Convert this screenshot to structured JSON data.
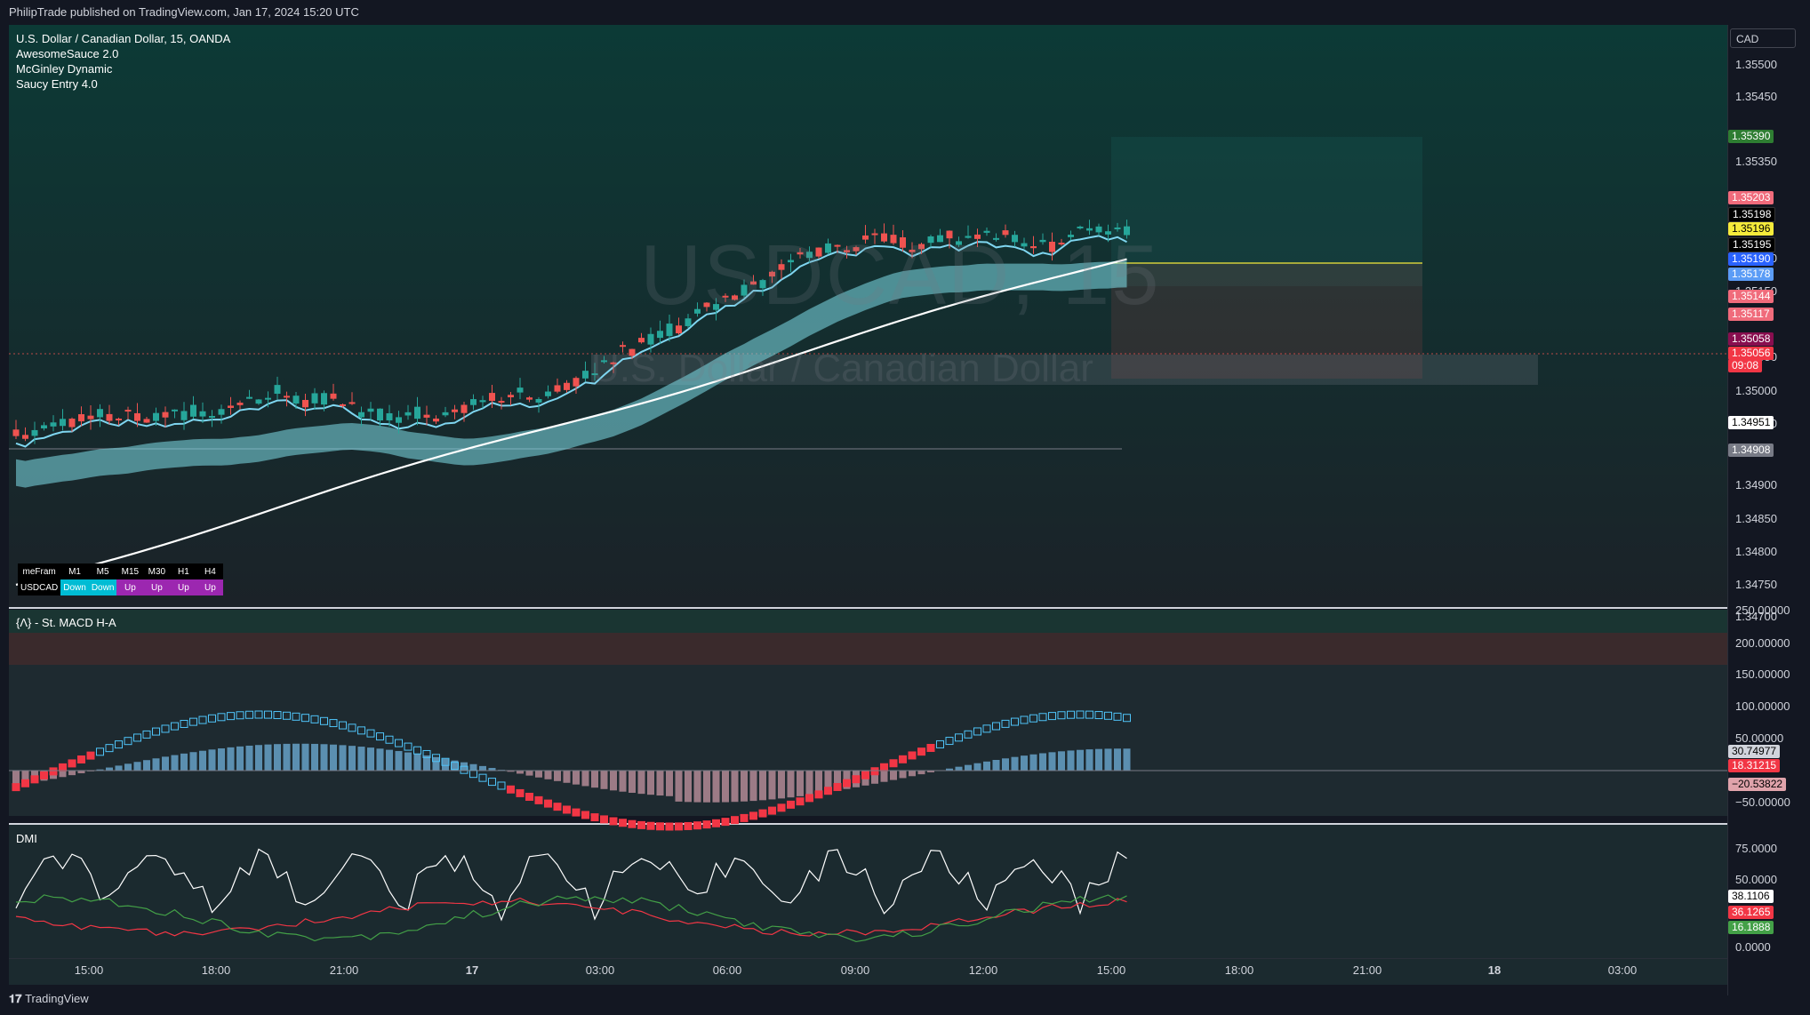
{
  "publish_line": "PhilipTrade published on TradingView.com, Jan 17, 2024 15:20 UTC",
  "main_pane": {
    "legend": [
      "U.S. Dollar / Canadian Dollar, 15, OANDA",
      "AwesomeSauce 2.0",
      "McGinley Dynamic",
      "Saucy Entry 4.0"
    ],
    "watermark_symbol": "USDCAD, 15",
    "watermark_name": "U.S. Dollar / Canadian Dollar",
    "currency_label": "CAD",
    "price_ticks": [
      "1.35500",
      "1.35450",
      "1.35400",
      "1.35350",
      "1.35300",
      "1.35250",
      "1.35200",
      "1.35150",
      "1.35100",
      "1.35050",
      "1.35000",
      "1.34950",
      "1.34900",
      "1.34850",
      "1.34800",
      "1.34750",
      "1.34700"
    ],
    "price_tags": [
      {
        "text": "1.35390",
        "color": "#2e7d32"
      },
      {
        "text": "1.35203",
        "color": "#f06b7b"
      },
      {
        "text": "1.35198",
        "color": "#000000"
      },
      {
        "text": "1.35196",
        "color": "#f5eb3b"
      },
      {
        "text": "1.35195",
        "color": "#000000"
      },
      {
        "text": "1.35190",
        "color": "#2962ff"
      },
      {
        "text": "1.35178",
        "color": "#5b9cf6"
      },
      {
        "text": "1.35144",
        "color": "#f06b7b"
      },
      {
        "text": "1.35117",
        "color": "#f06b7b"
      },
      {
        "text": "1.35058",
        "color": "#880e4f"
      },
      {
        "text": "1.35056",
        "color": "#f23645"
      },
      {
        "text": "09:08",
        "color": "#f23645"
      },
      {
        "text": "1.34951",
        "color": "#ffffff"
      },
      {
        "text": "1.34908",
        "color": "#787b86"
      }
    ],
    "timeframe_table": {
      "header": [
        "meFram",
        "M1",
        "M5",
        "M15",
        "M30",
        "H1",
        "H4"
      ],
      "row": [
        "USDCAD",
        "Down",
        "Down",
        "Up",
        "Up",
        "Up",
        "Up"
      ],
      "row_colors": [
        "#000000",
        "#00bcd4",
        "#00bcd4",
        "#9c27b0",
        "#9c27b0",
        "#9c27b0",
        "#9c27b0"
      ]
    }
  },
  "macd_pane": {
    "title": "{Λ} - St. MACD H-A",
    "ticks": [
      "250.00000",
      "200.00000",
      "150.00000",
      "100.00000",
      "50.00000",
      "0.00000",
      "−50.00000"
    ],
    "tags": [
      {
        "text": "30.74977",
        "color": "#d1d4dc"
      },
      {
        "text": "18.31215",
        "color": "#f23645"
      },
      {
        "text": "−20.53822",
        "color": "#e0a3ab"
      }
    ]
  },
  "dmi_pane": {
    "title": "DMI",
    "ticks": [
      "75.0000",
      "50.0000",
      "0.0000"
    ],
    "tags": [
      {
        "text": "38.1106",
        "color": "#ffffff"
      },
      {
        "text": "36.1265",
        "color": "#f23645"
      },
      {
        "text": "16.1888",
        "color": "#43a047"
      }
    ]
  },
  "x_axis": {
    "labels": [
      "15:00",
      "18:00",
      "21:00",
      "17",
      "03:00",
      "06:00",
      "09:00",
      "12:00",
      "15:00",
      "18:00",
      "21:00",
      "18",
      "03:00"
    ],
    "bold": [
      false,
      false,
      false,
      true,
      false,
      false,
      false,
      false,
      false,
      false,
      false,
      true,
      false
    ]
  },
  "footer_logo": "TradingView",
  "colors": {
    "bg": "#131722",
    "pane": "#1e2a30",
    "bull": "#26a69a",
    "bear": "#ef5350",
    "ribbon": "#80deea"
  }
}
